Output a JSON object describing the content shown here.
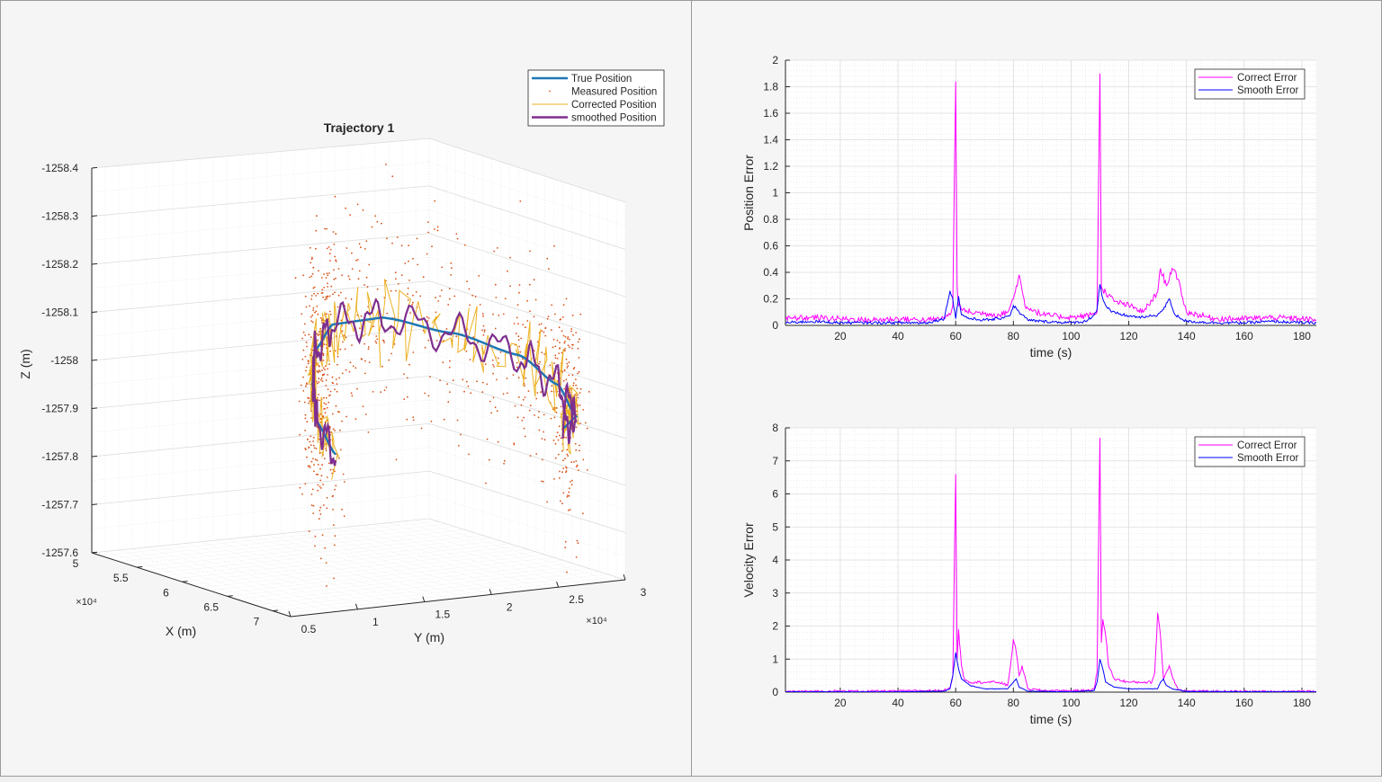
{
  "panels": {
    "left": "3d-trajectory",
    "right": "error-plots"
  },
  "colors": {
    "true_position": "#1f77b4",
    "measured_position": "#d95319",
    "corrected_position": "#edb120",
    "smoothed_position": "#7e2f8e",
    "correct_error": "#ff00ff",
    "smooth_error": "#0000ff"
  },
  "chart_data": [
    {
      "type": "line",
      "subtype": "3d",
      "title": "Trajectory 1",
      "xlabel": "X (m)",
      "ylabel": "Y (m)",
      "zlabel": "Z (m)",
      "x_ticks": [
        "5",
        "5.5",
        "6",
        "6.5",
        "7"
      ],
      "x_exponent": "×10⁴",
      "y_ticks": [
        "0.5",
        "1",
        "1.5",
        "2",
        "2.5",
        "3"
      ],
      "y_exponent": "×10⁴",
      "z_ticks": [
        "-1258.4",
        "-1258.3",
        "-1258.2",
        "-1258.1",
        "-1258",
        "-1257.9",
        "-1257.8",
        "-1257.7",
        "-1257.6"
      ],
      "xlim": [
        50000,
        72000
      ],
      "ylim": [
        5000,
        30000
      ],
      "zlim": [
        -1258.4,
        -1257.6
      ],
      "grid": true,
      "legend_position": "top-right",
      "legend": [
        "True Position",
        "Measured Position",
        "Corrected Position",
        "smoothed Position"
      ],
      "series": [
        {
          "name": "True Position",
          "x": [
            71000,
            66000,
            61000,
            56000,
            52000,
            51500,
            55000,
            60000,
            65000,
            70000,
            71500
          ],
          "y": [
            9000,
            11000,
            14000,
            17500,
            21500,
            25500,
            28500,
            30000,
            29500,
            27500,
            25500
          ],
          "z": [
            -1257.92,
            -1257.95,
            -1257.99,
            -1258.02,
            -1258.04,
            -1258.04,
            -1258.02,
            -1258.0,
            -1257.97,
            -1257.94,
            -1257.93
          ]
        },
        {
          "name": "smoothed Position",
          "note_values_approx": true,
          "x": [
            71000,
            66000,
            61000,
            56000,
            52000,
            51500,
            55000,
            60000,
            65000,
            70000,
            71500
          ],
          "y": [
            9000,
            11000,
            14000,
            17500,
            21500,
            25500,
            28500,
            30000,
            29500,
            27500,
            25500
          ],
          "z": [
            -1257.91,
            -1257.96,
            -1258.03,
            -1257.98,
            -1258.08,
            -1258.01,
            -1258.05,
            -1257.97,
            -1258.02,
            -1257.95,
            -1257.94
          ]
        }
      ]
    },
    {
      "type": "line",
      "title": "",
      "xlabel": "time (s)",
      "ylabel": "Position Error",
      "xlim": [
        1,
        185
      ],
      "ylim": [
        0,
        2
      ],
      "x_ticks": [
        20,
        40,
        60,
        80,
        100,
        120,
        140,
        160,
        180
      ],
      "y_ticks": [
        "0",
        "0.2",
        "0.4",
        "0.6",
        "0.8",
        "1",
        "1.2",
        "1.4",
        "1.6",
        "1.8",
        "2"
      ],
      "grid": true,
      "legend_position": "top-right",
      "legend": [
        "Correct Error",
        "Smooth Error"
      ],
      "series": [
        {
          "name": "Correct Error",
          "x": [
            1,
            10,
            20,
            30,
            40,
            50,
            55,
            58,
            59,
            60,
            60.5,
            61,
            62,
            65,
            70,
            75,
            78,
            80,
            82,
            84,
            90,
            100,
            105,
            109,
            110,
            110.5,
            111,
            112,
            115,
            120,
            125,
            130,
            131,
            133,
            135,
            137,
            140,
            150,
            160,
            170,
            180,
            185
          ],
          "y": [
            0.05,
            0.06,
            0.05,
            0.04,
            0.05,
            0.04,
            0.05,
            0.08,
            0.15,
            1.84,
            0.3,
            0.15,
            0.12,
            0.1,
            0.09,
            0.08,
            0.1,
            0.2,
            0.38,
            0.15,
            0.08,
            0.06,
            0.07,
            0.1,
            1.9,
            0.3,
            0.27,
            0.25,
            0.18,
            0.15,
            0.1,
            0.25,
            0.43,
            0.3,
            0.43,
            0.35,
            0.1,
            0.05,
            0.05,
            0.06,
            0.05,
            0.04
          ]
        },
        {
          "name": "Smooth Error",
          "x": [
            1,
            10,
            20,
            30,
            40,
            50,
            56,
            58,
            59,
            60,
            61,
            62,
            65,
            70,
            75,
            79,
            80,
            82,
            85,
            90,
            100,
            105,
            108,
            109,
            110,
            111,
            112,
            114,
            120,
            125,
            130,
            132,
            134,
            136,
            140,
            150,
            160,
            170,
            180,
            185
          ],
          "y": [
            0.02,
            0.03,
            0.02,
            0.02,
            0.02,
            0.02,
            0.05,
            0.26,
            0.2,
            0.05,
            0.22,
            0.08,
            0.05,
            0.04,
            0.05,
            0.08,
            0.15,
            0.1,
            0.04,
            0.03,
            0.02,
            0.03,
            0.08,
            0.12,
            0.31,
            0.2,
            0.15,
            0.1,
            0.07,
            0.06,
            0.08,
            0.12,
            0.2,
            0.08,
            0.03,
            0.02,
            0.02,
            0.03,
            0.02,
            0.02
          ]
        }
      ]
    },
    {
      "type": "line",
      "title": "",
      "xlabel": "time (s)",
      "ylabel": "Velocity Error",
      "xlim": [
        1,
        185
      ],
      "ylim": [
        0,
        8
      ],
      "x_ticks": [
        20,
        40,
        60,
        80,
        100,
        120,
        140,
        160,
        180
      ],
      "y_ticks": [
        "0",
        "1",
        "2",
        "3",
        "4",
        "5",
        "6",
        "7",
        "8"
      ],
      "grid": true,
      "legend_position": "top-right",
      "legend": [
        "Correct Error",
        "Smooth Error"
      ],
      "series": [
        {
          "name": "Correct Error",
          "x": [
            1,
            20,
            40,
            55,
            58,
            59,
            60,
            60.5,
            61,
            62,
            63,
            65,
            70,
            75,
            78,
            79,
            80,
            81,
            82,
            83,
            85,
            90,
            100,
            105,
            108,
            109,
            110,
            110.5,
            111,
            112,
            113,
            115,
            120,
            125,
            128,
            129,
            130,
            131,
            132,
            133,
            134,
            135,
            137,
            140,
            160,
            185
          ],
          "y": [
            0.02,
            0.03,
            0.03,
            0.05,
            0.1,
            0.5,
            6.6,
            1.0,
            1.9,
            0.8,
            0.4,
            0.3,
            0.3,
            0.3,
            0.2,
            0.8,
            1.6,
            1.2,
            0.5,
            0.8,
            0.1,
            0.05,
            0.04,
            0.05,
            0.1,
            0.6,
            7.7,
            1.5,
            2.2,
            1.7,
            0.8,
            0.4,
            0.3,
            0.3,
            0.3,
            0.6,
            2.4,
            1.7,
            0.4,
            0.6,
            0.8,
            0.5,
            0.1,
            0.03,
            0.02,
            0.02
          ]
        },
        {
          "name": "Smooth Error",
          "x": [
            1,
            20,
            40,
            56,
            58,
            59,
            60,
            61,
            62,
            65,
            70,
            78,
            79,
            80,
            81,
            82,
            85,
            100,
            108,
            109,
            110,
            111,
            112,
            115,
            120,
            130,
            131,
            132,
            133,
            135,
            140,
            185
          ],
          "y": [
            0.01,
            0.01,
            0.01,
            0.03,
            0.1,
            0.5,
            1.2,
            0.7,
            0.4,
            0.2,
            0.1,
            0.1,
            0.2,
            0.3,
            0.4,
            0.15,
            0.03,
            0.01,
            0.05,
            0.3,
            1.0,
            0.7,
            0.3,
            0.15,
            0.1,
            0.1,
            0.3,
            0.4,
            0.2,
            0.1,
            0.02,
            0.01
          ]
        }
      ]
    }
  ]
}
